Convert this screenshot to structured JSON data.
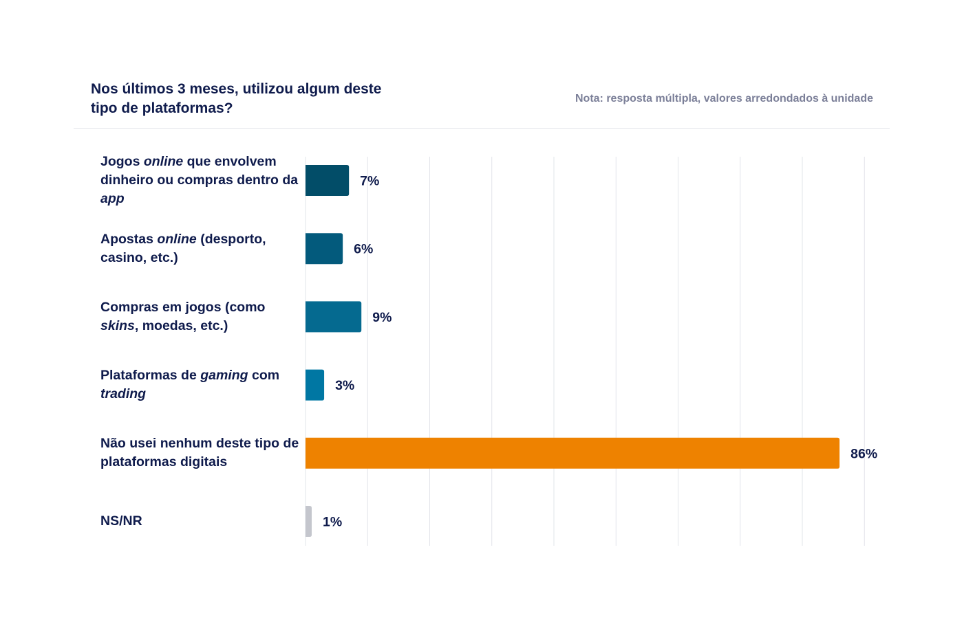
{
  "title": "Nos últimos 3 meses, utilizou algum deste tipo de plataformas?",
  "note": "Nota: resposta múltipla, valores arredondados à unidade",
  "chart_data": {
    "type": "bar",
    "orientation": "horizontal",
    "categories": [
      "Jogos online que envolvem dinheiro ou compras dentro da app",
      "Apostas online (desporto, casino, etc.)",
      "Compras em jogos (como skins, moedas, etc.)",
      "Plataformas de gaming com trading",
      "Não usei nenhum deste tipo de plataformas digitais",
      "NS/NR"
    ],
    "category_segments": [
      [
        {
          "t": "Jogos "
        },
        {
          "t": "online",
          "i": true
        },
        {
          "t": " que envolvem dinheiro ou compras dentro da "
        },
        {
          "t": "app",
          "i": true
        }
      ],
      [
        {
          "t": "Apostas "
        },
        {
          "t": "online",
          "i": true
        },
        {
          "t": " (desporto, casino, etc.)"
        }
      ],
      [
        {
          "t": "Compras em jogos (como "
        },
        {
          "t": "skins",
          "i": true
        },
        {
          "t": ", moedas, etc.)"
        }
      ],
      [
        {
          "t": "Plataformas de "
        },
        {
          "t": "gaming",
          "i": true
        },
        {
          "t": " com "
        },
        {
          "t": "trading",
          "i": true
        }
      ],
      [
        {
          "t": "Não usei nenhum deste tipo de plataformas digitais"
        }
      ],
      [
        {
          "t": "NS/NR"
        }
      ]
    ],
    "values": [
      7,
      6,
      9,
      3,
      86,
      1
    ],
    "value_labels": [
      "7%",
      "6%",
      "9%",
      "3%",
      "86%",
      "1%"
    ],
    "colors": [
      "#024d68",
      "#035a7c",
      "#056a90",
      "#0077a3",
      "#ee8200",
      "#c4c6cd"
    ],
    "xlim": [
      0,
      90
    ],
    "grid": true,
    "gridline_step": 10
  }
}
